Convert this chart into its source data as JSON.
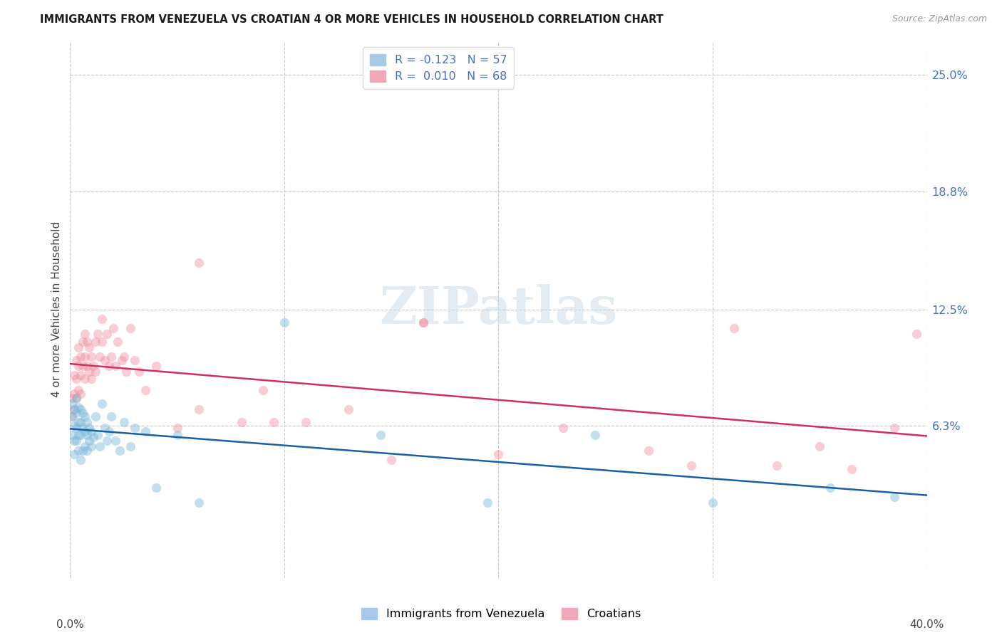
{
  "title": "IMMIGRANTS FROM VENEZUELA VS CROATIAN 4 OR MORE VEHICLES IN HOUSEHOLD CORRELATION CHART",
  "source": "Source: ZipAtlas.com",
  "ylabel": "4 or more Vehicles in Household",
  "xmin": 0.0,
  "xmax": 0.4,
  "ymin": -0.018,
  "ymax": 0.268,
  "right_yticks": [
    0.063,
    0.125,
    0.188,
    0.25
  ],
  "right_yticklabels": [
    "6.3%",
    "12.5%",
    "18.8%",
    "25.0%"
  ],
  "xtick_vals": [
    0.0,
    0.1,
    0.2,
    0.3,
    0.4
  ],
  "legend_label1": "Immigrants from Venezuela",
  "legend_label2": "Croatians",
  "blue_color": "#7ab8d9",
  "pink_color": "#f090a0",
  "trend_blue": "#1a5fa0",
  "trend_pink": "#d03060",
  "watermark": "ZIPatlas",
  "grid_color": "#c8c8c8",
  "background": "#ffffff",
  "blue_scatter_x": [
    0.001,
    0.001,
    0.001,
    0.002,
    0.002,
    0.002,
    0.002,
    0.003,
    0.003,
    0.003,
    0.003,
    0.004,
    0.004,
    0.004,
    0.004,
    0.005,
    0.005,
    0.005,
    0.005,
    0.006,
    0.006,
    0.006,
    0.007,
    0.007,
    0.007,
    0.008,
    0.008,
    0.008,
    0.009,
    0.009,
    0.01,
    0.01,
    0.011,
    0.012,
    0.013,
    0.014,
    0.015,
    0.016,
    0.017,
    0.018,
    0.019,
    0.021,
    0.023,
    0.025,
    0.028,
    0.03,
    0.035,
    0.04,
    0.05,
    0.06,
    0.1,
    0.145,
    0.195,
    0.245,
    0.3,
    0.355,
    0.385
  ],
  "blue_scatter_y": [
    0.075,
    0.068,
    0.058,
    0.072,
    0.063,
    0.055,
    0.048,
    0.078,
    0.07,
    0.062,
    0.055,
    0.073,
    0.065,
    0.058,
    0.05,
    0.072,
    0.065,
    0.058,
    0.045,
    0.07,
    0.062,
    0.05,
    0.068,
    0.06,
    0.052,
    0.065,
    0.058,
    0.05,
    0.062,
    0.055,
    0.06,
    0.052,
    0.057,
    0.068,
    0.058,
    0.052,
    0.075,
    0.062,
    0.055,
    0.06,
    0.068,
    0.055,
    0.05,
    0.065,
    0.052,
    0.062,
    0.06,
    0.03,
    0.058,
    0.022,
    0.118,
    0.058,
    0.022,
    0.058,
    0.022,
    0.03,
    0.025
  ],
  "pink_scatter_x": [
    0.001,
    0.001,
    0.002,
    0.002,
    0.002,
    0.003,
    0.003,
    0.003,
    0.004,
    0.004,
    0.004,
    0.005,
    0.005,
    0.005,
    0.006,
    0.006,
    0.007,
    0.007,
    0.007,
    0.008,
    0.008,
    0.009,
    0.009,
    0.01,
    0.01,
    0.011,
    0.012,
    0.012,
    0.013,
    0.014,
    0.015,
    0.015,
    0.016,
    0.017,
    0.018,
    0.019,
    0.02,
    0.021,
    0.022,
    0.024,
    0.025,
    0.026,
    0.028,
    0.03,
    0.032,
    0.035,
    0.04,
    0.05,
    0.06,
    0.08,
    0.09,
    0.11,
    0.13,
    0.15,
    0.165,
    0.2,
    0.23,
    0.27,
    0.29,
    0.31,
    0.33,
    0.35,
    0.365,
    0.385,
    0.395,
    0.06,
    0.095,
    0.165
  ],
  "pink_scatter_y": [
    0.078,
    0.068,
    0.09,
    0.08,
    0.072,
    0.098,
    0.088,
    0.078,
    0.105,
    0.095,
    0.082,
    0.1,
    0.09,
    0.08,
    0.108,
    0.095,
    0.112,
    0.1,
    0.088,
    0.108,
    0.095,
    0.105,
    0.092,
    0.1,
    0.088,
    0.095,
    0.108,
    0.092,
    0.112,
    0.1,
    0.12,
    0.108,
    0.098,
    0.112,
    0.095,
    0.1,
    0.115,
    0.095,
    0.108,
    0.098,
    0.1,
    0.092,
    0.115,
    0.098,
    0.092,
    0.082,
    0.095,
    0.062,
    0.072,
    0.065,
    0.082,
    0.065,
    0.072,
    0.045,
    0.118,
    0.048,
    0.062,
    0.05,
    0.042,
    0.115,
    0.042,
    0.052,
    0.04,
    0.062,
    0.112,
    0.15,
    0.065,
    0.118
  ]
}
